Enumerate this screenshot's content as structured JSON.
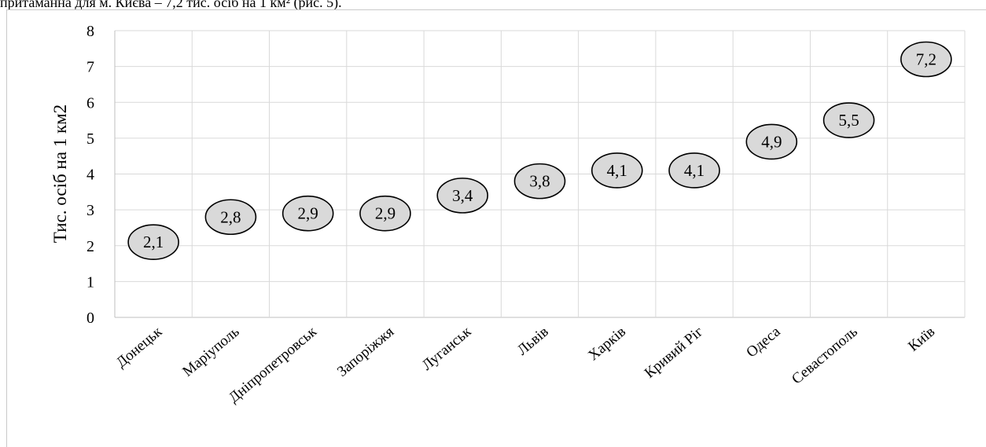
{
  "caption_text": "притаманна для м. Києва – 7,2 тис. осіб на 1 км² (рис. 5).",
  "chart_data": {
    "type": "scatter",
    "ylabel": "Тис. осіб на 1 км2",
    "xlabel": "",
    "ylim": [
      0,
      8
    ],
    "y_ticks": [
      "0",
      "1",
      "2",
      "3",
      "4",
      "5",
      "6",
      "7",
      "8"
    ],
    "grid": true,
    "categories": [
      "Донецьк",
      "Маріуполь",
      "Дніпропетровськ",
      "Запоріжжя",
      "Луганськ",
      "Львів",
      "Харків",
      "Кривий Ріг",
      "Одеса",
      "Севастополь",
      "Київ"
    ],
    "values": [
      2.1,
      2.8,
      2.9,
      2.9,
      3.4,
      3.8,
      4.1,
      4.1,
      4.9,
      5.5,
      7.2
    ],
    "data_labels": [
      "2,1",
      "2,8",
      "2,9",
      "2,9",
      "3,4",
      "3,8",
      "4,1",
      "4,1",
      "4,9",
      "5,5",
      "7,2"
    ],
    "marker_fill": "#d9d9d9",
    "marker_stroke": "#000000",
    "grid_color": "#d9d9d9"
  }
}
